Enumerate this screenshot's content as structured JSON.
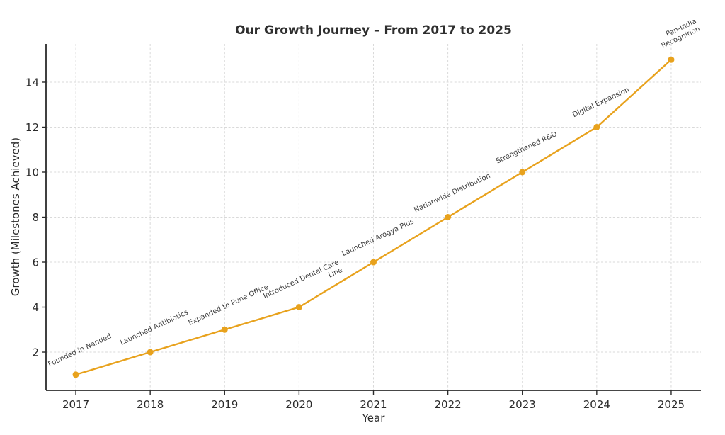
{
  "chart_data": {
    "type": "line",
    "title": "Our Growth Journey – From 2017 to 2025",
    "xlabel": "Year",
    "ylabel": "Growth (Milestones Achieved)",
    "x": [
      2017,
      2018,
      2019,
      2020,
      2021,
      2022,
      2023,
      2024,
      2025
    ],
    "series": [
      {
        "name": "Growth",
        "values": [
          1,
          2,
          3,
          4,
          6,
          8,
          10,
          12,
          15
        ]
      }
    ],
    "annotations": [
      "Founded in Nanded",
      "Launched Antibiotics",
      "Expanded to Pune Office",
      "Introduced Dental Care\nLine",
      "Launched Arogya Plus",
      "Nationwide Distribution",
      "Strengthened R&D",
      "Digital Expansion",
      "Pan-India Recognition"
    ],
    "xlim": [
      2016.6,
      2025.4
    ],
    "ylim": [
      0.3,
      15.7
    ],
    "yticks": [
      2,
      4,
      6,
      8,
      10,
      12,
      14
    ],
    "grid": true,
    "grid_style": "dashed",
    "legend": false
  },
  "colors": {
    "accent": "#E8A21D",
    "grid": "#d9d9d9",
    "axis": "#2b2b2b",
    "title_text": "#2e2e2e",
    "annotation_text": "#3d3d3d",
    "background": "#ffffff"
  }
}
